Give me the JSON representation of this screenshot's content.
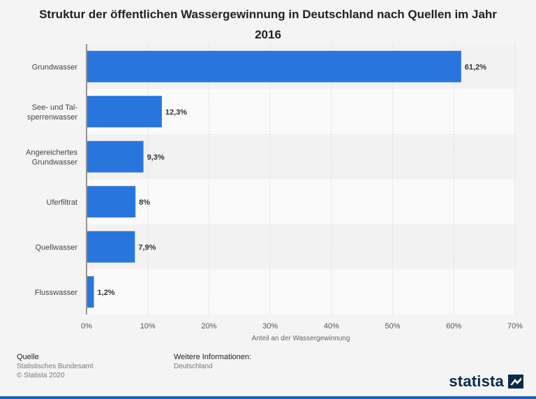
{
  "title": "Struktur der öffentlichen Wassergewinnung in Deutschland nach Quellen im Jahr 2016",
  "chart_data": {
    "type": "bar",
    "orientation": "horizontal",
    "categories": [
      [
        "Grundwasser"
      ],
      [
        "See- und Tal-",
        "sperrenwasser"
      ],
      [
        "Angereichertes",
        "Grundwasser"
      ],
      [
        "Uferfiltrat"
      ],
      [
        "Quellwasser"
      ],
      [
        "Flusswasser"
      ]
    ],
    "values": [
      61.2,
      12.3,
      9.3,
      8,
      7.9,
      1.2
    ],
    "value_labels": [
      "61,2%",
      "12,3%",
      "9,3%",
      "8%",
      "7,9%",
      "1,2%"
    ],
    "xlabel": "Anteil an der Wassergewinnung",
    "xlim": [
      0,
      70
    ],
    "xticks": [
      0,
      10,
      20,
      30,
      40,
      50,
      60,
      70
    ],
    "xtick_labels": [
      "0%",
      "10%",
      "20%",
      "30%",
      "40%",
      "50%",
      "60%",
      "70%"
    ],
    "bar_color": "#2876dd",
    "grid": true
  },
  "footer": {
    "source_heading": "Quelle",
    "source_name": "Statistisches Bundesamt",
    "copyright": "© Statista 2020",
    "info_heading": "Weitere Informationen:",
    "info_text": "Deutschland"
  },
  "brand": {
    "name": "statista",
    "logo_icon": "statista-flag-icon"
  }
}
